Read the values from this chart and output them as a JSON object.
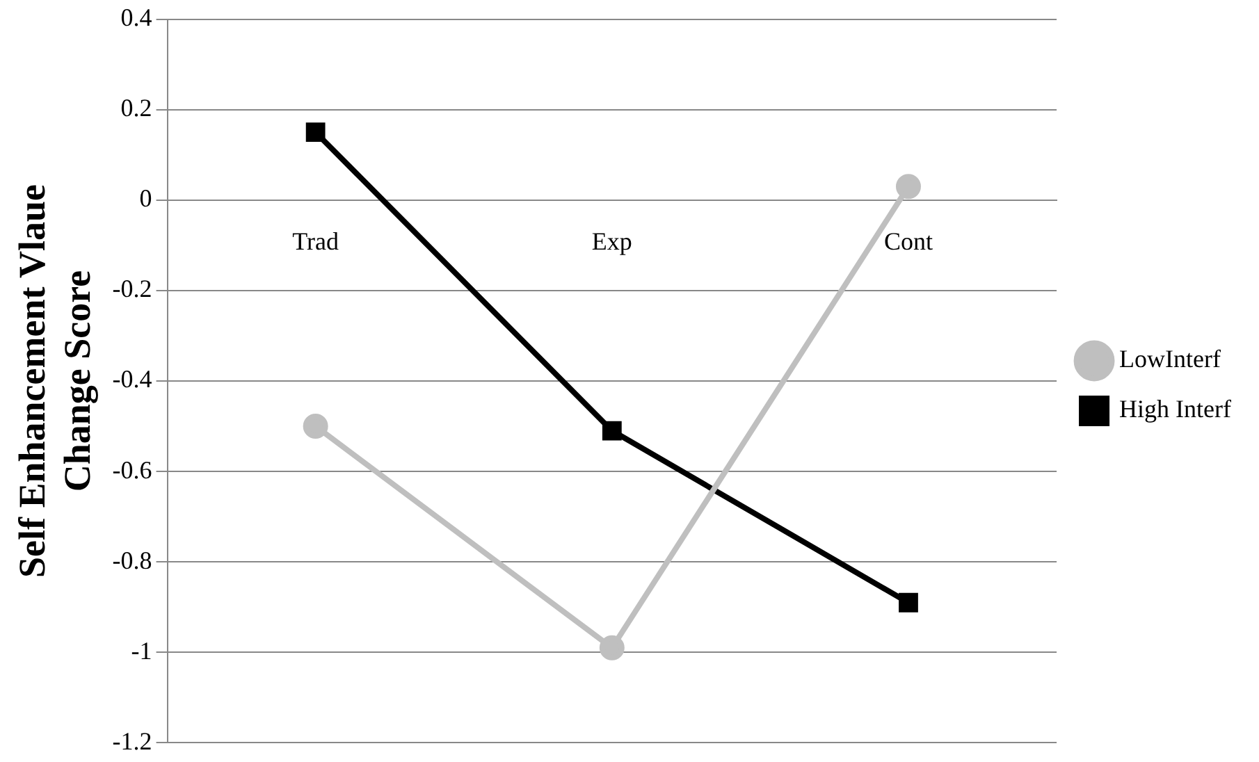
{
  "chart_data": {
    "type": "line",
    "ylabel": "Self Enhancement Vlaue Change Score",
    "categories": [
      "Trad",
      "Exp",
      "Cont"
    ],
    "series": [
      {
        "name": "LowInterf",
        "color": "#bfbfbf",
        "marker": "circle",
        "values": [
          -0.5,
          -0.99,
          0.03
        ]
      },
      {
        "name": "High Interf",
        "color": "#000000",
        "marker": "square",
        "values": [
          0.15,
          -0.51,
          -0.89
        ]
      }
    ],
    "ylim": [
      -1.2,
      0.4
    ],
    "yticks": [
      -1.2,
      -1,
      -0.8,
      -0.6,
      -0.4,
      -0.2,
      0,
      0.2,
      0.4
    ],
    "grid": "y",
    "legend": "right"
  }
}
